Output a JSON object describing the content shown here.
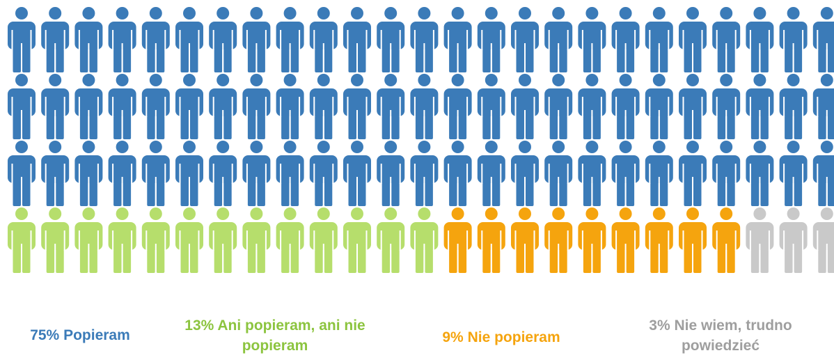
{
  "chart_data": {
    "type": "pictogram",
    "categories": [
      "Popieram",
      "Ani popieram, ani nie popieram",
      "Nie popieram",
      "Nie wiem, trudno powiedzieć"
    ],
    "values": [
      75,
      13,
      9,
      3
    ],
    "value_labels": [
      "75%",
      "13%",
      "9%",
      "3%"
    ],
    "colors": [
      "#3b7bb8",
      "#b6de6c",
      "#f5a40e",
      "#c9c9c9"
    ],
    "label_colors": [
      "#3b7bb8",
      "#8cc43f",
      "#f5a40e",
      "#9e9e9e"
    ]
  }
}
